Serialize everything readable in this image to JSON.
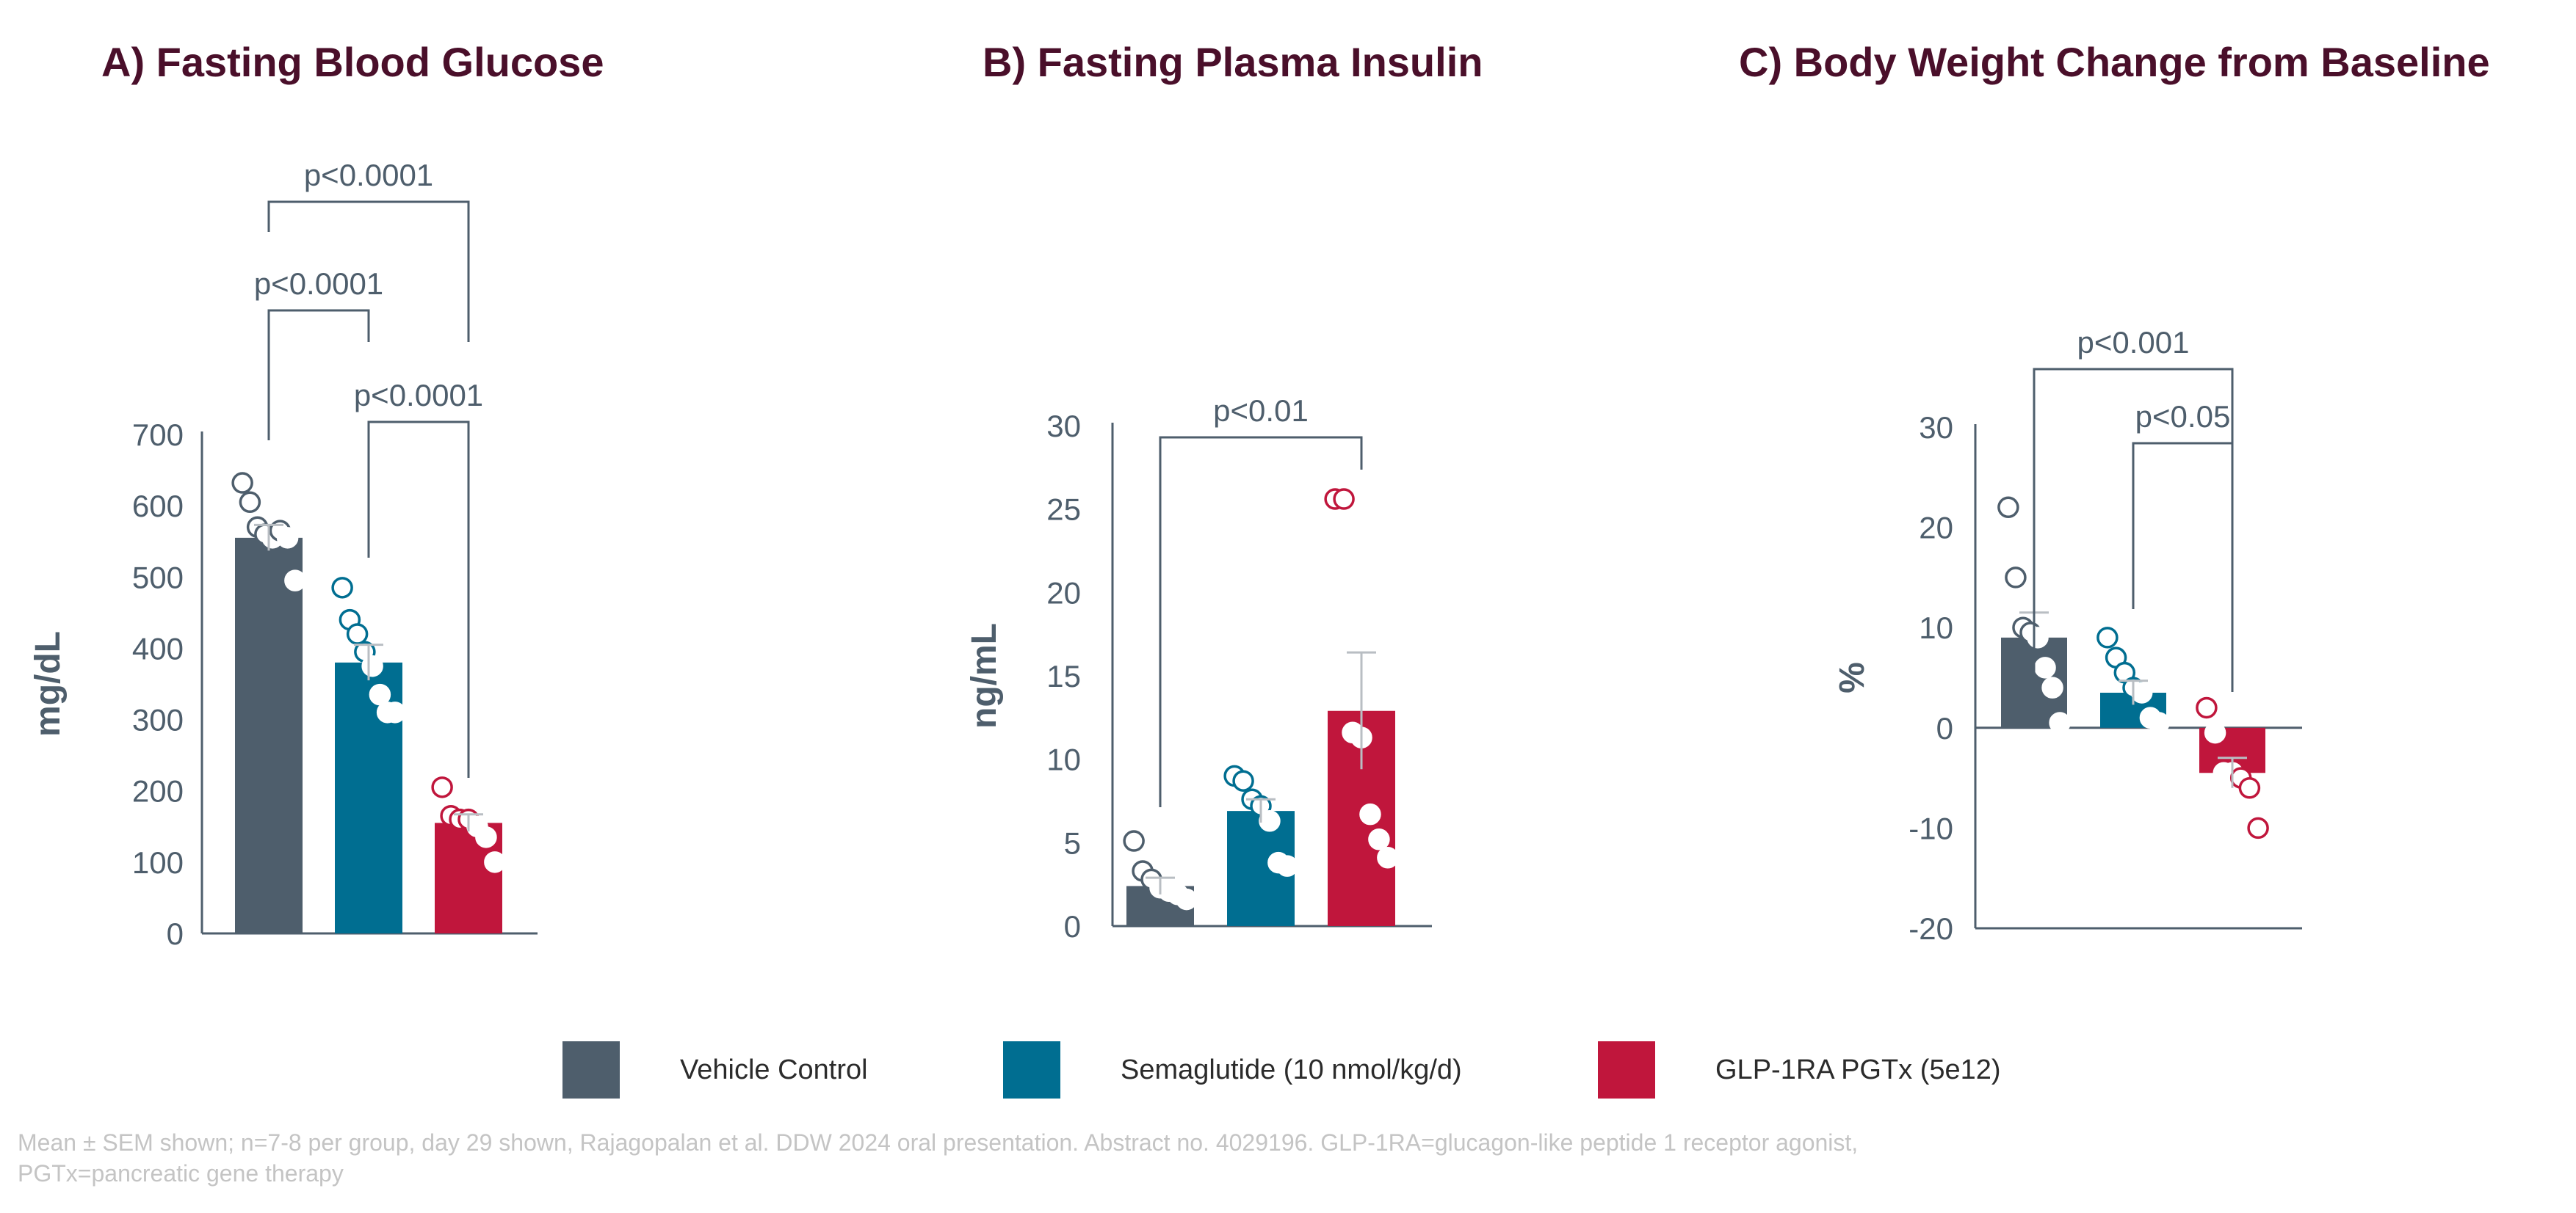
{
  "colors": {
    "vehicle": "#4e5e6c",
    "semaglutide": "#006e91",
    "glp1": "#c0163c",
    "axis": "#4e5e6c",
    "title": "#4a0f2a",
    "error_bar": "#b9bec3",
    "footnote": "#c4c4c4"
  },
  "legend": {
    "items": [
      {
        "label": "Vehicle Control",
        "color_key": "vehicle"
      },
      {
        "label": "Semaglutide (10 nmol/kg/d)",
        "color_key": "semaglutide"
      },
      {
        "label": "GLP-1RA PGTx (5e12)",
        "color_key": "glp1"
      }
    ]
  },
  "footnote": {
    "line1": "Mean ± SEM shown; n=7-8 per group, day 29 shown, Rajagopalan et al. DDW 2024 oral presentation. Abstract no. 4029196. GLP-1RA=glucagon-like peptide 1 receptor agonist,",
    "line2": "PGTx=pancreatic gene therapy"
  },
  "chart_data": [
    {
      "type": "bar",
      "title": "A) Fasting Blood Glucose",
      "ylabel": "mg/dL",
      "ylim": [
        0,
        700
      ],
      "yticks": [
        0,
        100,
        200,
        300,
        400,
        500,
        600,
        700
      ],
      "categories": [
        "Vehicle Control",
        "Semaglutide (10 nmol/kg/d)",
        "GLP-1RA PGTx (5e12)"
      ],
      "values": [
        555,
        380,
        155
      ],
      "sem": [
        18,
        25,
        12
      ],
      "points": [
        [
          632,
          605,
          570,
          560,
          555,
          565,
          555,
          495
        ],
        [
          485,
          440,
          420,
          395,
          375,
          335,
          310,
          310
        ],
        [
          205,
          165,
          160,
          160,
          150,
          135,
          100
        ]
      ],
      "significance": [
        {
          "groups": [
            0,
            1
          ],
          "label": "p<0.0001"
        },
        {
          "groups": [
            0,
            2
          ],
          "label": "p<0.0001"
        },
        {
          "groups": [
            1,
            2
          ],
          "label": "p<0.0001"
        }
      ]
    },
    {
      "type": "bar",
      "title": "B) Fasting Plasma Insulin",
      "ylabel": "ng/mL",
      "ylim": [
        0,
        30
      ],
      "yticks": [
        0,
        5,
        10,
        15,
        20,
        25,
        30
      ],
      "categories": [
        "Vehicle Control",
        "Semaglutide (10 nmol/kg/d)",
        "GLP-1RA PGTx (5e12)"
      ],
      "values": [
        2.4,
        6.9,
        12.9
      ],
      "sem": [
        0.5,
        0.7,
        3.5
      ],
      "points": [
        [
          5.1,
          3.3,
          2.8,
          2.3,
          2.1,
          1.9,
          1.6
        ],
        [
          9.0,
          8.7,
          7.6,
          7.2,
          6.3,
          3.8,
          3.6
        ],
        [
          25.6,
          25.6,
          11.6,
          11.3,
          6.7,
          5.2,
          4.1
        ]
      ],
      "significance": [
        {
          "groups": [
            0,
            2
          ],
          "label": "p<0.01"
        }
      ]
    },
    {
      "type": "bar",
      "title": "C) Body Weight Change from Baseline",
      "ylabel": "%",
      "ylim": [
        -20,
        30
      ],
      "yticks": [
        -20,
        -10,
        0,
        10,
        20,
        30
      ],
      "categories": [
        "Vehicle Control",
        "Semaglutide (10 nmol/kg/d)",
        "GLP-1RA PGTx (5e12)"
      ],
      "values": [
        9.0,
        3.5,
        -4.5
      ],
      "sem": [
        2.5,
        1.2,
        1.5
      ],
      "points": [
        [
          22,
          15,
          10,
          9.5,
          9,
          6,
          4,
          0.5
        ],
        [
          9,
          7,
          5.5,
          4,
          3.5,
          1,
          0.5
        ],
        [
          2,
          -0.5,
          -4.5,
          -4.5,
          -5,
          -6,
          -10
        ]
      ],
      "significance": [
        {
          "groups": [
            0,
            2
          ],
          "label": "p<0.001"
        },
        {
          "groups": [
            1,
            2
          ],
          "label": "p<0.05"
        }
      ]
    }
  ]
}
